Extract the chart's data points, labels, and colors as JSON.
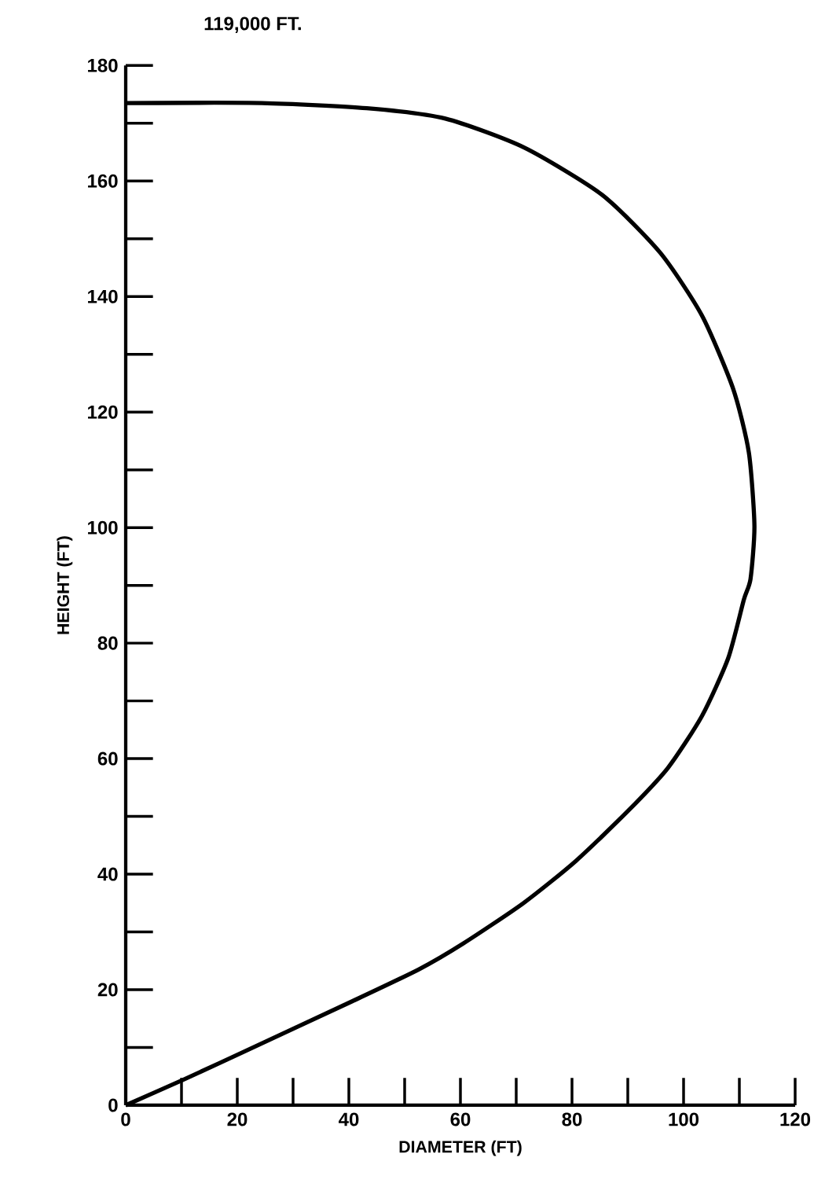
{
  "chart_data": {
    "type": "line",
    "title": "119,000 FT.",
    "xlabel": "DIAMETER (FT)",
    "ylabel": "HEIGHT (FT)",
    "x": [
      0,
      10.3,
      20.6,
      40.6,
      52.5,
      60.5,
      71.3,
      80.7,
      90.1,
      97.2,
      103.3,
      108,
      110.8,
      112,
      112.7,
      111.7,
      108.9,
      103.3,
      95.8,
      85.4,
      71.4,
      57.3,
      43.2,
      24.4,
      0
    ],
    "values": [
      0,
      4.4,
      9,
      18,
      23.5,
      28,
      35,
      42.3,
      51,
      58.4,
      67.4,
      77.4,
      87.5,
      91.1,
      100.3,
      113,
      124,
      136.7,
      147.6,
      157.6,
      165.8,
      170.8,
      172.6,
      173.5,
      173.5
    ],
    "color": "#000000",
    "marker": "none",
    "line_style": "solid",
    "xlim": [
      0,
      120
    ],
    "ylim": [
      0,
      180
    ],
    "xticks": [
      0,
      20,
      40,
      60,
      80,
      100,
      120
    ],
    "yticks": [
      0,
      20,
      40,
      60,
      80,
      100,
      120,
      140,
      160,
      180
    ]
  }
}
